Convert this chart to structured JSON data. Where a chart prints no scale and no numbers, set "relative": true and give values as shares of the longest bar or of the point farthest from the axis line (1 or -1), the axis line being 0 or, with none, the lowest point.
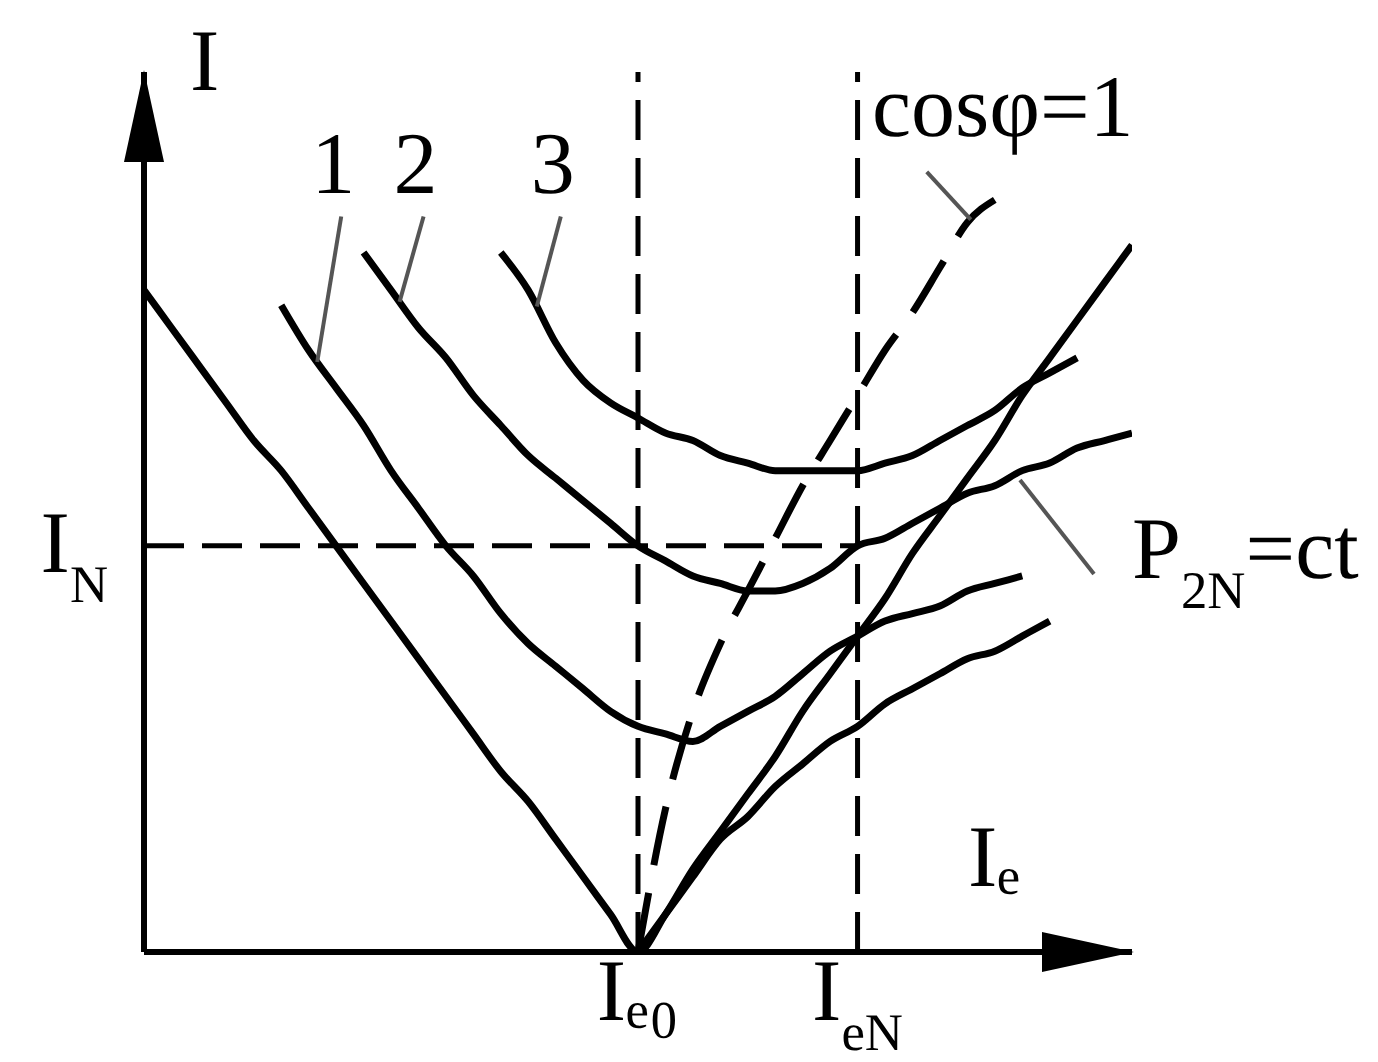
{
  "chart_data": {
    "type": "line",
    "relative": true,
    "marker": "none",
    "xlabel": "Iₑ",
    "ylabel": "I",
    "categories": [
      null,
      null,
      null,
      null,
      null,
      null,
      null,
      null,
      null,
      null,
      null,
      null,
      null,
      null,
      null,
      null,
      null,
      null,
      "Iₑ₀",
      null,
      null,
      null,
      null,
      null,
      null,
      null,
      "I$_{eN}$",
      null,
      null,
      null,
      null,
      null,
      null,
      null,
      null,
      null,
      null
    ],
    "ref_lines": [
      {
        "axis": "x",
        "value": "Iₑ₀",
        "line_style": "dashed",
        "color": "#000000"
      },
      {
        "axis": "x",
        "value": "I$_{eN}$",
        "line_style": "dashed",
        "color": "#000000"
      },
      {
        "axis": "y",
        "value": 0.54,
        "label": "I$_{N}$",
        "line_style": "dashed",
        "color": "#000000"
      }
    ],
    "annotations": [
      "P$_{2N}$=ct"
    ],
    "series": [
      {
        "color": "#000000",
        "values": [
          0.88,
          0.83,
          0.78,
          0.73,
          0.68,
          0.64,
          0.59,
          0.54,
          0.49,
          0.44,
          0.39,
          0.34,
          0.29,
          0.24,
          0.2,
          0.15,
          0.1,
          0.05,
          0,
          0.05,
          0.11,
          0.16,
          0.21,
          0.26,
          0.32,
          0.37,
          0.42,
          0.47,
          0.53,
          0.58,
          0.63,
          0.68,
          0.74,
          0.79,
          0.84,
          0.89,
          0.94
        ]
      },
      {
        "name": "1",
        "color": "#000000",
        "values": [
          null,
          null,
          null,
          null,
          null,
          0.86,
          0.8,
          0.75,
          0.7,
          0.64,
          0.59,
          0.54,
          0.5,
          0.45,
          0.41,
          0.38,
          0.35,
          0.32,
          0.3,
          0.29,
          0.28,
          0.3,
          0.32,
          0.34,
          0.37,
          0.4,
          0.42,
          0.44,
          0.45,
          0.46,
          0.48,
          0.49,
          0.5,
          null,
          null,
          null,
          null
        ]
      },
      {
        "name": "2",
        "color": "#000000",
        "values": [
          null,
          null,
          null,
          null,
          null,
          null,
          null,
          null,
          0.93,
          0.88,
          0.83,
          0.79,
          0.74,
          0.7,
          0.66,
          0.63,
          0.6,
          0.57,
          0.54,
          0.52,
          0.5,
          0.49,
          0.48,
          0.48,
          0.49,
          0.51,
          0.54,
          0.55,
          0.57,
          0.59,
          0.61,
          0.62,
          0.64,
          0.65,
          0.67,
          0.68,
          0.69
        ]
      },
      {
        "name": "3",
        "color": "#000000",
        "values": [
          null,
          null,
          null,
          null,
          null,
          null,
          null,
          null,
          null,
          null,
          null,
          null,
          null,
          0.93,
          0.88,
          0.81,
          0.76,
          0.73,
          0.71,
          0.69,
          0.68,
          0.66,
          0.65,
          0.64,
          0.64,
          0.64,
          0.64,
          0.65,
          0.66,
          0.68,
          0.7,
          0.72,
          0.75,
          0.77,
          0.79,
          null,
          null
        ]
      },
      {
        "name": "cosφ=1",
        "color": "#000000",
        "line_style": "dashed",
        "values": [
          null,
          null,
          null,
          null,
          null,
          null,
          null,
          null,
          null,
          null,
          null,
          null,
          null,
          null,
          null,
          null,
          null,
          null,
          0,
          0.19,
          0.32,
          0.41,
          0.48,
          0.55,
          0.62,
          0.68,
          0.74,
          0.8,
          0.85,
          0.91,
          0.97,
          1.0,
          null,
          null,
          null,
          null,
          null
        ]
      },
      {
        "color": "#000000",
        "values": [
          null,
          null,
          null,
          null,
          null,
          null,
          null,
          null,
          null,
          null,
          null,
          null,
          null,
          null,
          null,
          null,
          null,
          null,
          0,
          0.05,
          0.1,
          0.15,
          0.18,
          0.22,
          0.25,
          0.28,
          0.3,
          0.33,
          0.35,
          0.37,
          0.39,
          0.4,
          0.42,
          0.44,
          null,
          null,
          null
        ]
      }
    ]
  }
}
